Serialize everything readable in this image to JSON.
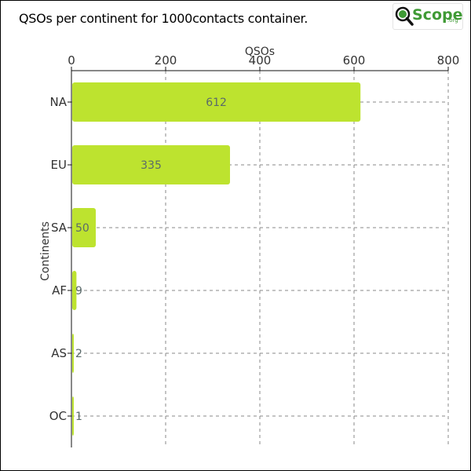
{
  "logo": {
    "text": "Scope",
    "sub": ".org",
    "color": "#3f9a35"
  },
  "chart_data": {
    "type": "bar",
    "orientation": "horizontal",
    "title": "QSOs per continent for 1000contacts container.",
    "xlabel": "QSOs",
    "ylabel": "Continents",
    "xlim": [
      0,
      800
    ],
    "xticks": [
      0,
      200,
      400,
      600,
      800
    ],
    "x_axis_position": "top",
    "grid": true,
    "categories": [
      "NA",
      "EU",
      "SA",
      "AF",
      "AS",
      "OC"
    ],
    "values": [
      612,
      335,
      50,
      9,
      2,
      1
    ],
    "data_labels": [
      "612",
      "335",
      "50",
      "9",
      "2",
      "1"
    ],
    "bar_color": "#bde32f",
    "label_color": "#5a6a6a"
  }
}
